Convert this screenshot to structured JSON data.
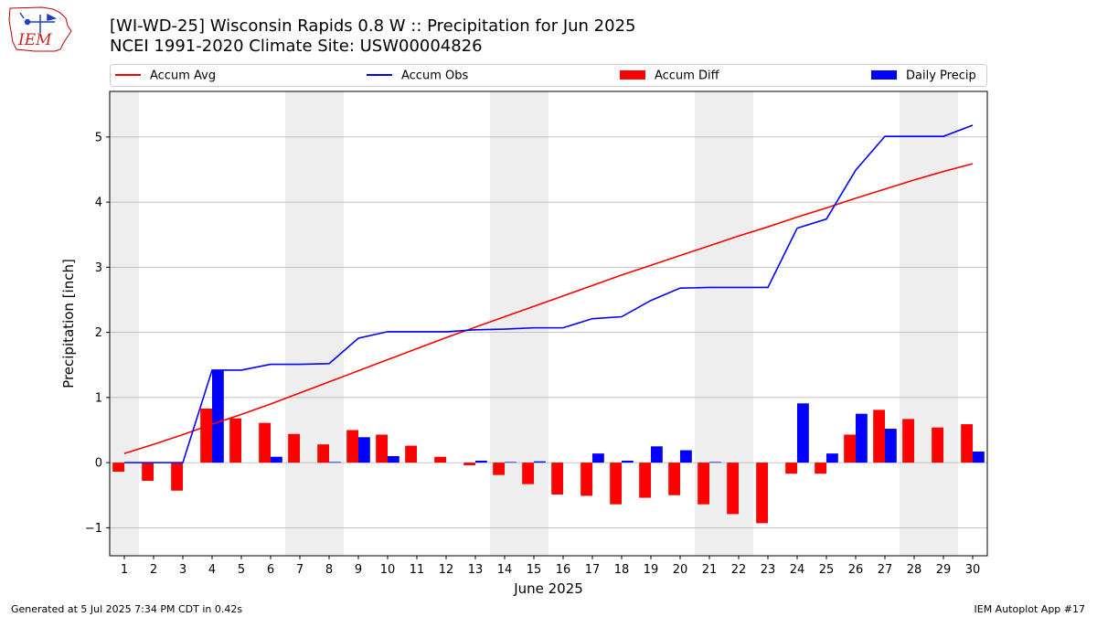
{
  "header": {
    "title_line1": "[WI-WD-25] Wisconsin Rapids 0.8 W :: Precipitation for Jun 2025",
    "title_line2": "NCEI 1991-2020 Climate Site: USW00004826",
    "logo_text": "IEM"
  },
  "footer": {
    "generated": "Generated at 5 Jul 2025 7:34 PM CDT in 0.42s",
    "app": "IEM Autoplot App #17"
  },
  "colors": {
    "avg": "#ff0000",
    "obs": "#0000ff",
    "diff": "#ff0000",
    "daily": "#0000ff",
    "weekend_band": "#eeeeee",
    "grid": "#b0b0b0"
  },
  "chart_data": {
    "type": "bar",
    "xlabel": "June 2025",
    "ylabel": "Precipitation [inch]",
    "x": [
      1,
      2,
      3,
      4,
      5,
      6,
      7,
      8,
      9,
      10,
      11,
      12,
      13,
      14,
      15,
      16,
      17,
      18,
      19,
      20,
      21,
      22,
      23,
      24,
      25,
      26,
      27,
      28,
      29,
      30
    ],
    "xticks": [
      "1",
      "2",
      "3",
      "4",
      "5",
      "6",
      "7",
      "8",
      "9",
      "10",
      "11",
      "12",
      "13",
      "14",
      "15",
      "16",
      "17",
      "18",
      "19",
      "20",
      "21",
      "22",
      "23",
      "24",
      "25",
      "26",
      "27",
      "28",
      "29",
      "30"
    ],
    "xlim": [
      0.5,
      30.5
    ],
    "ylim": [
      -1.43,
      5.7
    ],
    "yticks": [
      -1,
      0,
      1,
      2,
      3,
      4,
      5
    ],
    "ytick_labels": [
      "−1",
      "0",
      "1",
      "2",
      "3",
      "4",
      "5"
    ],
    "grid": "horizontal",
    "legend_position": "top",
    "weekend_days": [
      1,
      7,
      8,
      14,
      15,
      21,
      22,
      28,
      29
    ],
    "series": [
      {
        "name": "Accum Avg",
        "type": "line",
        "values": [
          0.14,
          0.28,
          0.43,
          0.59,
          0.74,
          0.9,
          1.07,
          1.24,
          1.41,
          1.58,
          1.75,
          1.92,
          2.08,
          2.24,
          2.4,
          2.56,
          2.72,
          2.88,
          3.03,
          3.18,
          3.33,
          3.48,
          3.62,
          3.77,
          3.91,
          4.06,
          4.2,
          4.34,
          4.47,
          4.59
        ]
      },
      {
        "name": "Accum Obs",
        "type": "line",
        "values": [
          0.0,
          0.0,
          0.0,
          1.42,
          1.42,
          1.51,
          1.51,
          1.52,
          1.91,
          2.01,
          2.01,
          2.01,
          2.04,
          2.05,
          2.07,
          2.07,
          2.21,
          2.24,
          2.49,
          2.68,
          2.69,
          2.69,
          2.69,
          3.6,
          3.74,
          4.49,
          5.01,
          5.01,
          5.01,
          5.18
        ]
      },
      {
        "name": "Accum Diff",
        "type": "bar",
        "values": [
          -0.14,
          -0.28,
          -0.43,
          0.83,
          0.68,
          0.61,
          0.44,
          0.28,
          0.5,
          0.43,
          0.26,
          0.09,
          -0.04,
          -0.19,
          -0.33,
          -0.49,
          -0.51,
          -0.64,
          -0.54,
          -0.5,
          -0.64,
          -0.79,
          -0.93,
          -0.17,
          -0.17,
          0.43,
          0.81,
          0.67,
          0.54,
          0.59
        ]
      },
      {
        "name": "Daily Precip",
        "type": "bar",
        "values": [
          0.0,
          0.0,
          0.0,
          1.42,
          0.0,
          0.09,
          0.0,
          0.01,
          0.39,
          0.1,
          0.0,
          0.0,
          0.03,
          0.01,
          0.02,
          0.0,
          0.14,
          0.03,
          0.25,
          0.19,
          0.01,
          0.0,
          0.0,
          0.91,
          0.14,
          0.75,
          0.52,
          0.0,
          0.0,
          0.17
        ]
      }
    ]
  }
}
